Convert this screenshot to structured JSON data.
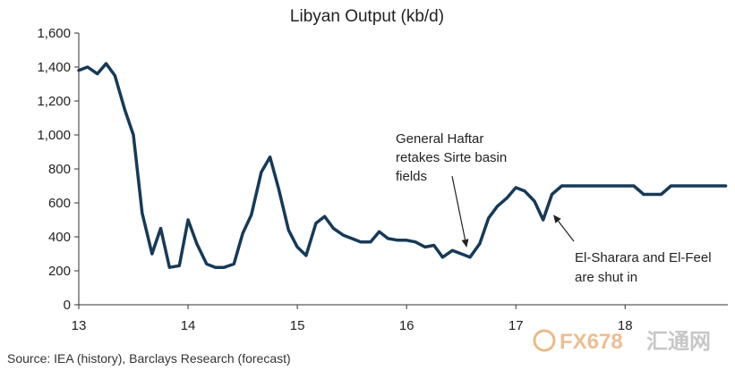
{
  "chart_data": {
    "type": "line",
    "title": "Libyan Output (kb/d)",
    "xlabel": "",
    "ylabel": "",
    "xlim": [
      13,
      18.94
    ],
    "ylim": [
      0,
      1600
    ],
    "grid": false,
    "x_ticks": [
      "13",
      "14",
      "15",
      "16",
      "17",
      "18"
    ],
    "y_ticks": [
      "0",
      "200",
      "400",
      "600",
      "800",
      "1,000",
      "1,200",
      "1,400",
      "1,600"
    ],
    "series": [
      {
        "color": "#163a58",
        "points": [
          [
            13.0,
            1380
          ],
          [
            13.08,
            1400
          ],
          [
            13.17,
            1360
          ],
          [
            13.25,
            1420
          ],
          [
            13.33,
            1350
          ],
          [
            13.42,
            1150
          ],
          [
            13.5,
            1000
          ],
          [
            13.58,
            540
          ],
          [
            13.67,
            300
          ],
          [
            13.75,
            450
          ],
          [
            13.83,
            220
          ],
          [
            13.92,
            230
          ],
          [
            14.0,
            500
          ],
          [
            14.08,
            360
          ],
          [
            14.17,
            240
          ],
          [
            14.25,
            220
          ],
          [
            14.33,
            220
          ],
          [
            14.42,
            240
          ],
          [
            14.5,
            420
          ],
          [
            14.58,
            530
          ],
          [
            14.67,
            780
          ],
          [
            14.75,
            870
          ],
          [
            14.83,
            680
          ],
          [
            14.92,
            440
          ],
          [
            15.0,
            340
          ],
          [
            15.08,
            290
          ],
          [
            15.17,
            480
          ],
          [
            15.25,
            520
          ],
          [
            15.33,
            450
          ],
          [
            15.42,
            410
          ],
          [
            15.5,
            390
          ],
          [
            15.58,
            370
          ],
          [
            15.67,
            370
          ],
          [
            15.75,
            430
          ],
          [
            15.83,
            390
          ],
          [
            15.92,
            380
          ],
          [
            16.0,
            380
          ],
          [
            16.08,
            370
          ],
          [
            16.17,
            340
          ],
          [
            16.25,
            350
          ],
          [
            16.33,
            280
          ],
          [
            16.42,
            320
          ],
          [
            16.5,
            300
          ],
          [
            16.58,
            280
          ],
          [
            16.67,
            360
          ],
          [
            16.75,
            510
          ],
          [
            16.83,
            580
          ],
          [
            16.92,
            630
          ],
          [
            17.0,
            690
          ],
          [
            17.08,
            670
          ],
          [
            17.17,
            610
          ],
          [
            17.25,
            500
          ],
          [
            17.33,
            650
          ],
          [
            17.42,
            700
          ],
          [
            17.5,
            700
          ],
          [
            17.58,
            700
          ],
          [
            17.67,
            700
          ],
          [
            17.75,
            700
          ],
          [
            17.83,
            700
          ],
          [
            17.92,
            700
          ],
          [
            18.0,
            700
          ],
          [
            18.08,
            700
          ],
          [
            18.17,
            650
          ],
          [
            18.25,
            650
          ],
          [
            18.33,
            650
          ],
          [
            18.42,
            700
          ],
          [
            18.5,
            700
          ],
          [
            18.58,
            700
          ],
          [
            18.67,
            700
          ],
          [
            18.75,
            700
          ],
          [
            18.83,
            700
          ],
          [
            18.92,
            700
          ]
        ]
      }
    ],
    "annotations": [
      {
        "lines": [
          "General Haftar",
          "retakes Sirte basin",
          "fields"
        ],
        "points_to": [
          16.55,
          285
        ]
      },
      {
        "lines": [
          "El-Sharara and El-Feel",
          "are shut in"
        ],
        "points_to": [
          17.31,
          520
        ]
      }
    ]
  },
  "source": "Source: IEA (history), Barclays Research (forecast)",
  "watermark": {
    "brand": "FX678",
    "cn": "汇通网"
  }
}
